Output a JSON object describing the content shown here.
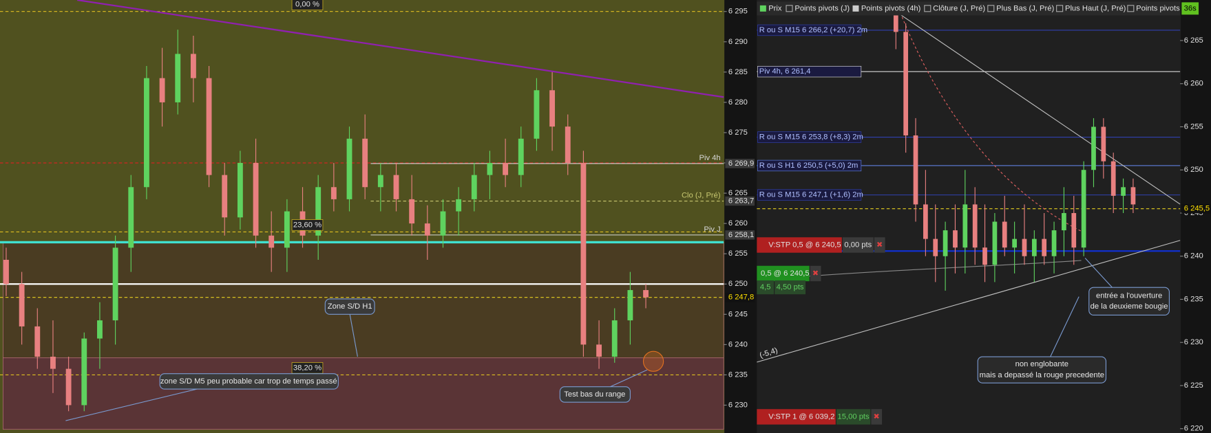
{
  "chart_data": [
    {
      "type": "candlestick",
      "ylim": [
        6225.4,
        6296.9
      ],
      "yticks": [
        {
          "value": 6230,
          "label": "6 230"
        },
        {
          "value": 6235,
          "label": "6 235"
        },
        {
          "value": 6240,
          "label": "6 240"
        },
        {
          "value": 6245,
          "label": "6 245"
        },
        {
          "value": 6250,
          "label": "6 250"
        },
        {
          "value": 6255,
          "label": "6 255"
        },
        {
          "value": 6260,
          "label": "6 260"
        },
        {
          "value": 6265,
          "label": "6 265"
        },
        {
          "value": 6270,
          "label": "6 270"
        },
        {
          "value": 6275,
          "label": "6 275"
        },
        {
          "value": 6280,
          "label": "6 280"
        },
        {
          "value": 6285,
          "label": "6 285"
        },
        {
          "value": 6290,
          "label": "6 290"
        },
        {
          "value": 6295,
          "label": "6 295"
        }
      ],
      "open": [
        6254,
        6250,
        6243,
        6238,
        6236,
        6230,
        6241,
        6244,
        6256,
        6266,
        6284,
        6280,
        6288,
        6284,
        6268,
        6261,
        6270,
        6258,
        6256,
        6262,
        6258,
        6266,
        6264,
        6274,
        6266,
        6268,
        6264,
        6260,
        6258,
        6262,
        6264,
        6268,
        6270,
        6268,
        6274,
        6282,
        6276,
        6270,
        6240,
        6238,
        6244,
        6249
      ],
      "high": [
        6256,
        6252,
        6246,
        6244,
        6238,
        6242,
        6247,
        6258,
        6268,
        6286,
        6289,
        6292,
        6291,
        6286,
        6270,
        6272,
        6274,
        6262,
        6264,
        6266,
        6268,
        6270,
        6276,
        6278,
        6270,
        6270,
        6268,
        6263,
        6264,
        6266,
        6270,
        6272,
        6274,
        6276,
        6284,
        6285,
        6278,
        6272,
        6244,
        6246,
        6252,
        6250
      ],
      "low": [
        6248,
        6240,
        6236,
        6232,
        6229,
        6229,
        6236,
        6240,
        6252,
        6264,
        6276,
        6278,
        6280,
        6266,
        6258,
        6259,
        6256,
        6252,
        6252,
        6256,
        6254,
        6262,
        6262,
        6264,
        6262,
        6262,
        6258,
        6254,
        6256,
        6258,
        6262,
        6264,
        6266,
        6266,
        6272,
        6272,
        6268,
        6238,
        6236,
        6237,
        6240,
        6246
      ],
      "close": [
        6250,
        6243,
        6238,
        6236,
        6230,
        6241,
        6244,
        6256,
        6266,
        6284,
        6280,
        6288,
        6284,
        6268,
        6261,
        6270,
        6258,
        6256,
        6262,
        6258,
        6266,
        6264,
        6274,
        6266,
        6268,
        6264,
        6260,
        6258,
        6262,
        6264,
        6268,
        6270,
        6268,
        6274,
        6282,
        6276,
        6270,
        6240,
        6238,
        6244,
        6249,
        6247.8
      ],
      "up_color": "#5fd35f",
      "down_color": "#e88080",
      "zones": [
        {
          "from": 6256.9,
          "to": 6237.8,
          "color": "#4a3c22"
        },
        {
          "from": 6237.8,
          "to": 6226,
          "color": "#5a3436"
        }
      ],
      "lines": [
        {
          "value": 6270,
          "color": "#e02020",
          "dash": true,
          "width": 1
        },
        {
          "value": 6256.9,
          "color": "#40e0d0",
          "dash": false,
          "width": 3
        },
        {
          "value": 6250,
          "color": "#ffffff",
          "dash": false,
          "width": 2
        }
      ],
      "fib": [
        {
          "value": 6295,
          "label": "0,00 %"
        },
        {
          "value": 6258.6,
          "label": "23,60 %"
        },
        {
          "value": 6235,
          "label": "38,20 %"
        }
      ],
      "levels": [
        {
          "name": "Piv 4h",
          "value": 6269.9,
          "label": "6 269,9",
          "color": "#d8d8d8"
        },
        {
          "name": "Clo (J, Pré)",
          "value": 6263.7,
          "label": "6 263,7",
          "color": "#c8c870"
        },
        {
          "name": "Piv J",
          "value": 6258.1,
          "label": "6 258,1",
          "color": "#d8d8d8"
        }
      ],
      "price": {
        "value": 6247.8,
        "label": "6 247,8"
      },
      "annotations": [
        "Zone S/D H1",
        "zone S/D M5 peu probable car trop de temps passé",
        "Test bas du range"
      ]
    },
    {
      "type": "candlestick",
      "ylim": [
        6219.5,
        6269.7
      ],
      "yticks": [
        {
          "value": 6220,
          "label": "6 220"
        },
        {
          "value": 6225,
          "label": "6 225"
        },
        {
          "value": 6230,
          "label": "6 230"
        },
        {
          "value": 6235,
          "label": "6 235"
        },
        {
          "value": 6240,
          "label": "6 240"
        },
        {
          "value": 6245,
          "label": "6 245"
        },
        {
          "value": 6250,
          "label": "6 250"
        },
        {
          "value": 6255,
          "label": "6 255"
        },
        {
          "value": 6260,
          "label": "6 260"
        },
        {
          "value": 6265,
          "label": "6 265"
        }
      ],
      "open": [
        6268,
        6266,
        6254,
        6246,
        6242,
        6240,
        6243,
        6241,
        6246,
        6241,
        6239,
        6244,
        6241,
        6242,
        6240,
        6242,
        6240,
        6243,
        6245,
        6241,
        6250,
        6255,
        6251,
        6247,
        6248
      ],
      "high": [
        6269.5,
        6267,
        6256,
        6250,
        6246,
        6244,
        6246,
        6250,
        6248,
        6246,
        6245,
        6247,
        6244,
        6246,
        6243,
        6245,
        6244,
        6248,
        6247,
        6251,
        6256,
        6256,
        6252,
        6249,
        6249
      ],
      "low": [
        6264,
        6252,
        6244,
        6240,
        6237,
        6236,
        6238,
        6238,
        6239,
        6237,
        6237,
        6240,
        6238,
        6239,
        6237,
        6239,
        6238,
        6240,
        6239,
        6240,
        6248,
        6249,
        6245,
        6245,
        6245
      ],
      "close": [
        6266,
        6254,
        6246,
        6242,
        6240,
        6243,
        6241,
        6246,
        6241,
        6239,
        6244,
        6241,
        6242,
        6240,
        6242,
        6240,
        6243,
        6245,
        6241,
        6250,
        6255,
        6251,
        6247,
        6248,
        6246
      ],
      "up_color": "#5fd35f",
      "down_color": "#e88080",
      "lines": [
        {
          "value": 6240.6,
          "color": "#1030d0",
          "dash": false,
          "width": 2
        }
      ],
      "levels": [
        {
          "name": "R ou S M15 6 266,2 (+20,7) 2m",
          "value": 6266.2,
          "color": "#3040b0"
        },
        {
          "name": "Piv 4h, 6 261,4",
          "value": 6261.4,
          "color": "#d8d8d8"
        },
        {
          "name": "R ou S M15 6 253,8 (+8,3) 2m",
          "value": 6253.8,
          "color": "#3040b0"
        },
        {
          "name": "R ou S H1 6 250,5 (+5,0) 2m",
          "value": 6250.5,
          "color": "#6080e0"
        },
        {
          "name": "R ou S M15 6 247,1 (+1,6) 2m",
          "value": 6247.1,
          "color": "#3040b0"
        }
      ],
      "price": {
        "value": 6245.5,
        "label": "6 245,5"
      },
      "legend_items": [
        "Prix",
        "Points pivots (J)",
        "Points pivots (4h)",
        "Clôture (J, Pré)",
        "Plus Bas (J, Pré)",
        "Plus Haut (J, Pré)",
        "Points pivots"
      ],
      "timer": "36s",
      "orders": [
        {
          "label": "V:STP 0,5 @ 6 240,5",
          "pts": "0,00 pts"
        },
        {
          "label": "0,5 @ 6 240,5",
          "qty": "4,5",
          "pts": "4,50 pts"
        },
        {
          "label": "V:STP 1 @ 6 039,2",
          "pts": "15,00 pts"
        }
      ],
      "annotations": [
        [
          "entrée a l'ouverture",
          "de la deuxieme bougie"
        ],
        [
          "non englobante",
          "mais a depassé la rouge precedente"
        ],
        "(-5,4)"
      ]
    }
  ]
}
